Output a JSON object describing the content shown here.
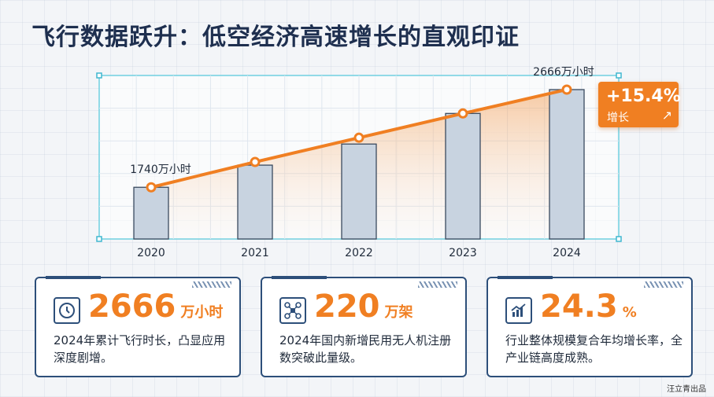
{
  "title": "飞行数据跃升：低空经济高速增长的直观印证",
  "chart_data": {
    "type": "bar",
    "categories": [
      "2020",
      "2021",
      "2022",
      "2023",
      "2024"
    ],
    "bar_values": [
      1740,
      1950,
      2150,
      2440,
      2666
    ],
    "line_values": [
      1740,
      1980,
      2210,
      2440,
      2666
    ],
    "point_labels": [
      "1740万小时",
      "",
      "",
      "",
      "2666万小时"
    ],
    "unit": "万小时",
    "ylim": [
      1250,
      2800
    ],
    "grid": true,
    "colors": {
      "bar": "#c8d3e0",
      "bar_stroke": "#3a4a5f",
      "line": "#f07f22"
    }
  },
  "badge": {
    "value": "+15.4%",
    "label": "增长",
    "icon": "arrow-up-right-icon"
  },
  "cards": [
    {
      "icon": "clock-icon",
      "value": "2666",
      "unit": "万小时",
      "desc": "2024年累计飞行时长，凸显应用深度剧增。"
    },
    {
      "icon": "drone-icon",
      "value": "220",
      "unit": "万架",
      "desc": "2024年国内新增民用无人机注册数突破此量级。"
    },
    {
      "icon": "bar-chart-icon",
      "value": "24.3",
      "unit": "%",
      "desc": "行业整体规模复合年均增长率，全产业链高度成熟。"
    }
  ],
  "footer": "汪立青出品"
}
